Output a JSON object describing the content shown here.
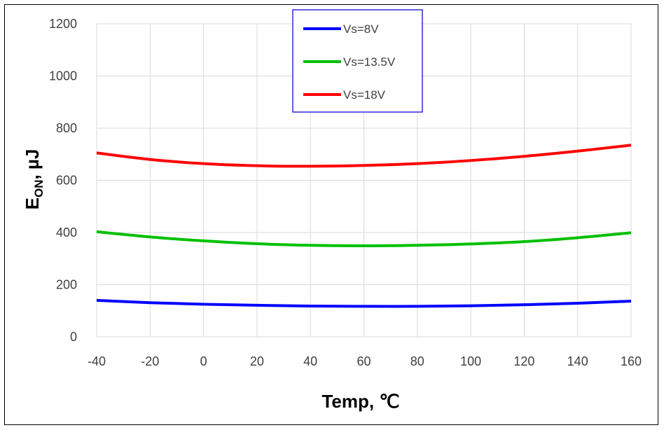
{
  "chart_data": {
    "type": "line",
    "xlabel": "Temp, ℃",
    "ylabel_main": "E",
    "ylabel_sub": "ON",
    "ylabel_rest": ", µJ",
    "xlim": [
      -40,
      160
    ],
    "ylim": [
      0,
      1200
    ],
    "xticks": [
      -40,
      -20,
      0,
      20,
      40,
      60,
      80,
      100,
      120,
      140,
      160
    ],
    "yticks": [
      0,
      200,
      400,
      600,
      800,
      1000,
      1200
    ],
    "grid": true,
    "legend_position": "top-center",
    "x": [
      -40,
      -20,
      0,
      20,
      40,
      60,
      80,
      100,
      120,
      140,
      160
    ],
    "series": [
      {
        "name": "Vs=8V",
        "color": "#0000ff",
        "values": [
          140,
          131,
          125,
          121,
          118,
          117,
          117,
          119,
          123,
          129,
          137
        ]
      },
      {
        "name": "Vs=13.5V",
        "color": "#00c000",
        "values": [
          403,
          383,
          368,
          357,
          351,
          349,
          351,
          356,
          365,
          380,
          399
        ]
      },
      {
        "name": "Vs=18V",
        "color": "#ff0000",
        "values": [
          705,
          680,
          664,
          656,
          654,
          657,
          664,
          676,
          692,
          712,
          735
        ]
      }
    ]
  }
}
